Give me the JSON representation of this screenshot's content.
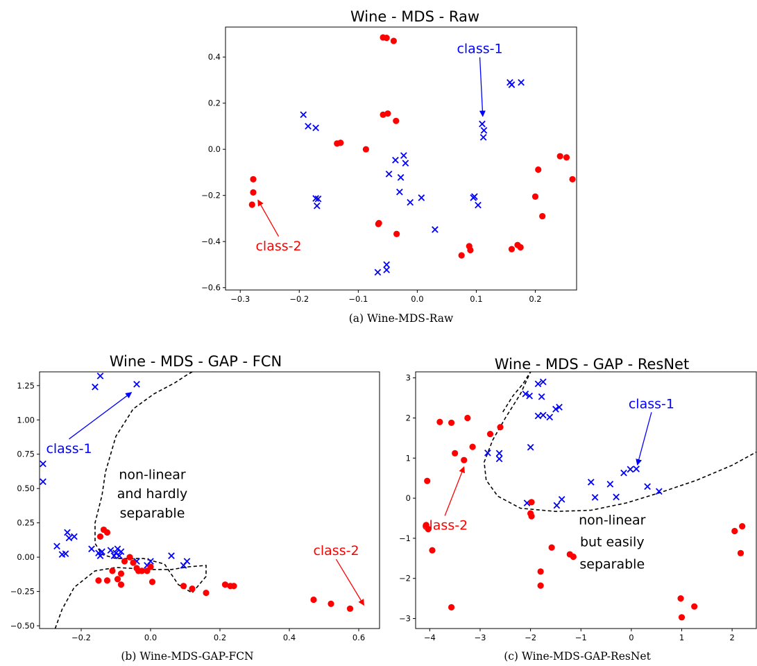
{
  "colors": {
    "class1": "#0000ff",
    "class2": "#ff0000",
    "boundary": "#000000"
  },
  "chart_data": [
    {
      "id": "a",
      "type": "scatter",
      "title": "Wine - MDS - Raw",
      "caption": "(a) Wine-MDS-Raw",
      "xlim": [
        -0.325,
        0.27
      ],
      "ylim": [
        -0.61,
        0.53
      ],
      "xticks": [
        -0.3,
        -0.2,
        -0.1,
        0.0,
        0.1,
        0.2
      ],
      "xtick_labels": [
        "−0.3",
        "−0.2",
        "−0.1",
        "0.0",
        "0.1",
        "0.2"
      ],
      "yticks": [
        -0.6,
        -0.4,
        -0.2,
        0.0,
        0.2,
        0.4
      ],
      "ytick_labels": [
        "−0.6",
        "−0.4",
        "−0.2",
        "0.0",
        "0.2",
        "0.4"
      ],
      "grid": false,
      "series": [
        {
          "name": "class-1",
          "marker": "x",
          "color": "#0000ff",
          "points": [
            [
              -0.193,
              0.15
            ],
            [
              -0.185,
              0.1
            ],
            [
              -0.172,
              0.093
            ],
            [
              -0.172,
              -0.213
            ],
            [
              -0.168,
              -0.215
            ],
            [
              -0.17,
              -0.245
            ],
            [
              -0.048,
              -0.107
            ],
            [
              -0.037,
              -0.047
            ],
            [
              -0.028,
              -0.122
            ],
            [
              -0.023,
              -0.027
            ],
            [
              -0.02,
              -0.06
            ],
            [
              -0.03,
              -0.185
            ],
            [
              -0.012,
              -0.23
            ],
            [
              0.007,
              -0.21
            ],
            [
              0.03,
              -0.348
            ],
            [
              -0.067,
              -0.533
            ],
            [
              -0.052,
              -0.5
            ],
            [
              -0.052,
              -0.523
            ],
            [
              0.095,
              -0.21
            ],
            [
              0.097,
              -0.205
            ],
            [
              0.103,
              -0.242
            ],
            [
              0.11,
              0.11
            ],
            [
              0.113,
              0.082
            ],
            [
              0.112,
              0.052
            ],
            [
              0.157,
              0.29
            ],
            [
              0.16,
              0.28
            ],
            [
              0.176,
              0.29
            ]
          ]
        },
        {
          "name": "class-2",
          "marker": "o",
          "color": "#ff0000",
          "points": [
            [
              -0.058,
              0.485
            ],
            [
              -0.052,
              0.483
            ],
            [
              -0.04,
              0.47
            ],
            [
              -0.058,
              0.15
            ],
            [
              -0.05,
              0.155
            ],
            [
              -0.036,
              0.123
            ],
            [
              -0.136,
              0.025
            ],
            [
              -0.13,
              0.028
            ],
            [
              -0.087,
              0.0
            ],
            [
              -0.278,
              -0.13
            ],
            [
              -0.278,
              -0.187
            ],
            [
              -0.28,
              -0.24
            ],
            [
              -0.065,
              -0.32
            ],
            [
              -0.066,
              -0.324
            ],
            [
              -0.035,
              -0.367
            ],
            [
              0.075,
              -0.46
            ],
            [
              0.088,
              -0.42
            ],
            [
              0.09,
              -0.437
            ],
            [
              0.16,
              -0.433
            ],
            [
              0.17,
              -0.415
            ],
            [
              0.175,
              -0.425
            ],
            [
              0.2,
              -0.205
            ],
            [
              0.205,
              -0.088
            ],
            [
              0.212,
              -0.29
            ],
            [
              0.242,
              -0.03
            ],
            [
              0.253,
              -0.035
            ],
            [
              0.263,
              -0.13
            ]
          ]
        }
      ],
      "annotations": [
        {
          "text": "class-1",
          "color": "#0000ff",
          "text_at": [
            0.106,
            0.435
          ],
          "arrow_to": [
            0.111,
            0.143
          ]
        },
        {
          "text": "class-2",
          "color": "#ff0000",
          "text_at": [
            -0.235,
            -0.42
          ],
          "arrow_to": [
            -0.27,
            -0.22
          ]
        }
      ]
    },
    {
      "id": "b",
      "type": "scatter",
      "title": "Wine - MDS - GAP - FCN",
      "caption": "(b) Wine-MDS-GAP-FCN",
      "xlim": [
        -0.32,
        0.66
      ],
      "ylim": [
        -0.52,
        1.35
      ],
      "xticks": [
        -0.2,
        0.0,
        0.2,
        0.4,
        0.6
      ],
      "xtick_labels": [
        "−0.2",
        "0.0",
        "0.2",
        "0.4",
        "0.6"
      ],
      "yticks": [
        -0.5,
        -0.25,
        0.0,
        0.25,
        0.5,
        0.75,
        1.0,
        1.25
      ],
      "ytick_labels": [
        "−0.50",
        "−0.25",
        "0.00",
        "0.25",
        "0.50",
        "0.75",
        "1.00",
        "1.25"
      ],
      "grid": false,
      "series": [
        {
          "name": "class-1",
          "marker": "x",
          "color": "#0000ff",
          "points": [
            [
              -0.145,
              1.32
            ],
            [
              -0.16,
              1.24
            ],
            [
              -0.04,
              1.26
            ],
            [
              -0.31,
              0.68
            ],
            [
              -0.31,
              0.55
            ],
            [
              -0.27,
              0.08
            ],
            [
              -0.255,
              0.02
            ],
            [
              -0.245,
              0.025
            ],
            [
              -0.24,
              0.18
            ],
            [
              -0.235,
              0.14
            ],
            [
              -0.22,
              0.15
            ],
            [
              -0.17,
              0.06
            ],
            [
              -0.15,
              0.03
            ],
            [
              -0.145,
              0.01
            ],
            [
              -0.14,
              0.04
            ],
            [
              -0.115,
              0.05
            ],
            [
              -0.105,
              0.01
            ],
            [
              -0.1,
              0.03
            ],
            [
              -0.095,
              0.06
            ],
            [
              -0.09,
              0.01
            ],
            [
              -0.085,
              0.04
            ],
            [
              -0.04,
              -0.03
            ],
            [
              -0.01,
              -0.06
            ],
            [
              0.0,
              -0.03
            ],
            [
              0.06,
              0.01
            ],
            [
              0.095,
              -0.06
            ],
            [
              0.105,
              -0.03
            ]
          ]
        },
        {
          "name": "class-2",
          "marker": "o",
          "color": "#ff0000",
          "points": [
            [
              -0.145,
              0.15
            ],
            [
              -0.135,
              0.2
            ],
            [
              -0.125,
              0.18
            ],
            [
              -0.15,
              -0.17
            ],
            [
              -0.125,
              -0.17
            ],
            [
              -0.11,
              -0.1
            ],
            [
              -0.095,
              -0.16
            ],
            [
              -0.085,
              -0.2
            ],
            [
              -0.085,
              -0.12
            ],
            [
              -0.075,
              -0.03
            ],
            [
              -0.06,
              0.0
            ],
            [
              -0.05,
              -0.04
            ],
            [
              -0.04,
              -0.08
            ],
            [
              -0.035,
              -0.1
            ],
            [
              -0.025,
              -0.1
            ],
            [
              -0.01,
              -0.1
            ],
            [
              0.0,
              -0.07
            ],
            [
              0.005,
              -0.18
            ],
            [
              0.095,
              -0.21
            ],
            [
              0.12,
              -0.23
            ],
            [
              0.16,
              -0.26
            ],
            [
              0.215,
              -0.2
            ],
            [
              0.23,
              -0.21
            ],
            [
              0.24,
              -0.21
            ],
            [
              0.47,
              -0.31
            ],
            [
              0.52,
              -0.34
            ],
            [
              0.575,
              -0.375
            ]
          ]
        }
      ],
      "boundary": [
        [
          -0.275,
          -0.52
        ],
        [
          -0.255,
          -0.38
        ],
        [
          -0.22,
          -0.22
        ],
        [
          -0.16,
          -0.1
        ],
        [
          -0.1,
          -0.075
        ],
        [
          0.0,
          -0.09
        ],
        [
          0.06,
          -0.09
        ],
        [
          0.11,
          -0.07
        ],
        [
          0.16,
          -0.06
        ],
        [
          0.16,
          -0.14
        ],
        [
          0.12,
          -0.26
        ],
        [
          0.08,
          -0.2
        ],
        [
          0.04,
          -0.05
        ],
        [
          -0.02,
          -0.01
        ],
        [
          -0.1,
          -0.01
        ],
        [
          -0.14,
          0.02
        ],
        [
          -0.16,
          0.1
        ],
        [
          -0.16,
          0.25
        ],
        [
          -0.14,
          0.45
        ],
        [
          -0.13,
          0.62
        ],
        [
          -0.1,
          0.88
        ],
        [
          -0.05,
          1.08
        ],
        [
          0.01,
          1.19
        ],
        [
          0.07,
          1.27
        ],
        [
          0.1,
          1.32
        ],
        [
          0.12,
          1.35
        ]
      ],
      "annotations": [
        {
          "text": "class-1",
          "color": "#0000ff",
          "text_at": [
            -0.235,
            0.79
          ],
          "arrow_to": [
            -0.055,
            1.2
          ]
        },
        {
          "text": "class-2",
          "color": "#ff0000",
          "text_at": [
            0.535,
            0.045
          ],
          "arrow_to": [
            0.615,
            -0.35
          ]
        },
        {
          "text": "non-linear",
          "color": "#000000",
          "text_at": [
            0.005,
            0.6
          ],
          "arrow_to": null
        },
        {
          "text": "and hardly",
          "color": "#000000",
          "text_at": [
            0.005,
            0.46
          ],
          "arrow_to": null
        },
        {
          "text": "separable",
          "color": "#000000",
          "text_at": [
            0.005,
            0.32
          ],
          "arrow_to": null
        }
      ]
    },
    {
      "id": "c",
      "type": "scatter",
      "title": "Wine - MDS - GAP - ResNet",
      "caption": "(c) Wine-MDS-GAP-ResNet",
      "xlim": [
        -4.28,
        2.48
      ],
      "ylim": [
        -3.25,
        3.15
      ],
      "xticks": [
        -4,
        -3,
        -2,
        -1,
        0,
        1,
        2
      ],
      "xtick_labels": [
        "−4",
        "−3",
        "−2",
        "−1",
        "0",
        "1",
        "2"
      ],
      "yticks": [
        -3,
        -2,
        -1,
        0,
        1,
        2,
        3
      ],
      "ytick_labels": [
        "−3",
        "−2",
        "−1",
        "0",
        "1",
        "2",
        "3"
      ],
      "grid": false,
      "series": [
        {
          "name": "class-1",
          "marker": "x",
          "color": "#0000ff",
          "points": [
            [
              -2.85,
              1.13
            ],
            [
              -2.62,
              1.12
            ],
            [
              -2.62,
              0.98
            ],
            [
              -2.1,
              2.6
            ],
            [
              -2.02,
              2.55
            ],
            [
              -2.0,
              1.27
            ],
            [
              -1.85,
              2.85
            ],
            [
              -1.75,
              2.9
            ],
            [
              -1.78,
              2.53
            ],
            [
              -1.85,
              2.05
            ],
            [
              -1.75,
              2.07
            ],
            [
              -1.62,
              2.02
            ],
            [
              -1.5,
              2.22
            ],
            [
              -1.43,
              2.27
            ],
            [
              -2.07,
              -0.12
            ],
            [
              -1.48,
              -0.18
            ],
            [
              -1.38,
              -0.03
            ],
            [
              -0.8,
              0.4
            ],
            [
              -0.72,
              0.02
            ],
            [
              -0.42,
              0.35
            ],
            [
              -0.3,
              0.03
            ],
            [
              -0.15,
              0.63
            ],
            [
              -0.02,
              0.72
            ],
            [
              0.1,
              0.73
            ],
            [
              0.32,
              0.29
            ],
            [
              0.55,
              0.17
            ]
          ]
        },
        {
          "name": "class-2",
          "marker": "o",
          "color": "#ff0000",
          "points": [
            [
              -3.8,
              1.9
            ],
            [
              -3.57,
              1.88
            ],
            [
              -3.25,
              2.0
            ],
            [
              -3.5,
              1.12
            ],
            [
              -3.32,
              0.95
            ],
            [
              -3.15,
              1.28
            ],
            [
              -2.8,
              1.6
            ],
            [
              -2.6,
              1.77
            ],
            [
              -4.05,
              0.43
            ],
            [
              -4.07,
              -0.67
            ],
            [
              -4.03,
              -0.77
            ],
            [
              -3.95,
              -1.3
            ],
            [
              -3.57,
              -2.72
            ],
            [
              -2.0,
              -0.38
            ],
            [
              -1.98,
              -0.45
            ],
            [
              -1.98,
              -0.1
            ],
            [
              -1.58,
              -1.23
            ],
            [
              -1.8,
              -1.83
            ],
            [
              -1.8,
              -2.18
            ],
            [
              -1.22,
              -1.4
            ],
            [
              -1.15,
              -1.46
            ],
            [
              0.98,
              -2.5
            ],
            [
              1.0,
              -2.97
            ],
            [
              1.25,
              -2.7
            ],
            [
              2.05,
              -0.82
            ],
            [
              2.2,
              -0.7
            ],
            [
              2.17,
              -1.37
            ]
          ]
        }
      ],
      "boundary": [
        [
          -2.55,
          2.15
        ],
        [
          -2.35,
          2.55
        ],
        [
          -2.15,
          2.85
        ],
        [
          -2.0,
          3.15
        ],
        [
          -2.2,
          2.6
        ],
        [
          -2.5,
          2.0
        ],
        [
          -2.75,
          1.45
        ],
        [
          -2.92,
          0.9
        ],
        [
          -2.88,
          0.45
        ],
        [
          -2.65,
          0.05
        ],
        [
          -2.2,
          -0.25
        ],
        [
          -1.5,
          -0.33
        ],
        [
          -0.8,
          -0.3
        ],
        [
          -0.1,
          -0.12
        ],
        [
          0.6,
          0.15
        ],
        [
          1.3,
          0.45
        ],
        [
          2.0,
          0.82
        ],
        [
          2.48,
          1.15
        ]
      ],
      "annotations": [
        {
          "text": "class-1",
          "color": "#0000ff",
          "text_at": [
            0.4,
            2.35
          ],
          "arrow_to": [
            0.12,
            0.83
          ]
        },
        {
          "text": "class-2",
          "color": "#ff0000",
          "text_at": [
            -3.7,
            -0.68
          ],
          "arrow_to": [
            -3.32,
            0.78
          ]
        },
        {
          "text": "non-linear",
          "color": "#000000",
          "text_at": [
            -0.38,
            -0.55
          ],
          "arrow_to": null
        },
        {
          "text": "but easily",
          "color": "#000000",
          "text_at": [
            -0.38,
            -1.1
          ],
          "arrow_to": null
        },
        {
          "text": "separable",
          "color": "#000000",
          "text_at": [
            -0.38,
            -1.65
          ],
          "arrow_to": null
        }
      ]
    }
  ]
}
